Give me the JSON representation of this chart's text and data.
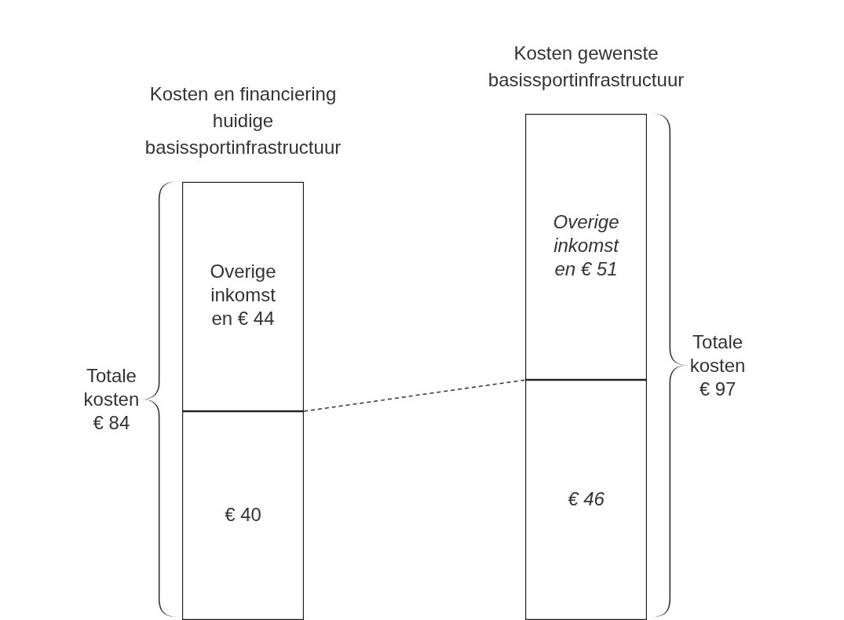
{
  "chart_data": {
    "type": "bar",
    "stacked": true,
    "categories": [
      "Kosten en financiering huidige basissportinfrastructuur",
      "Kosten gewenste basissportinfrastructuur"
    ],
    "series": [
      {
        "color": "#ffffff",
        "values": [
          40,
          46
        ],
        "value_labels": [
          "€ 40",
          "€ 46"
        ]
      },
      {
        "color": "#ffffff",
        "values": [
          44,
          51
        ],
        "value_labels": [
          "Overige inkomst en € 44",
          "Overige inkomst en € 51"
        ]
      }
    ],
    "totals": [
      "Totale kosten € 84",
      "Totale kosten € 97"
    ],
    "legend": false
  }
}
